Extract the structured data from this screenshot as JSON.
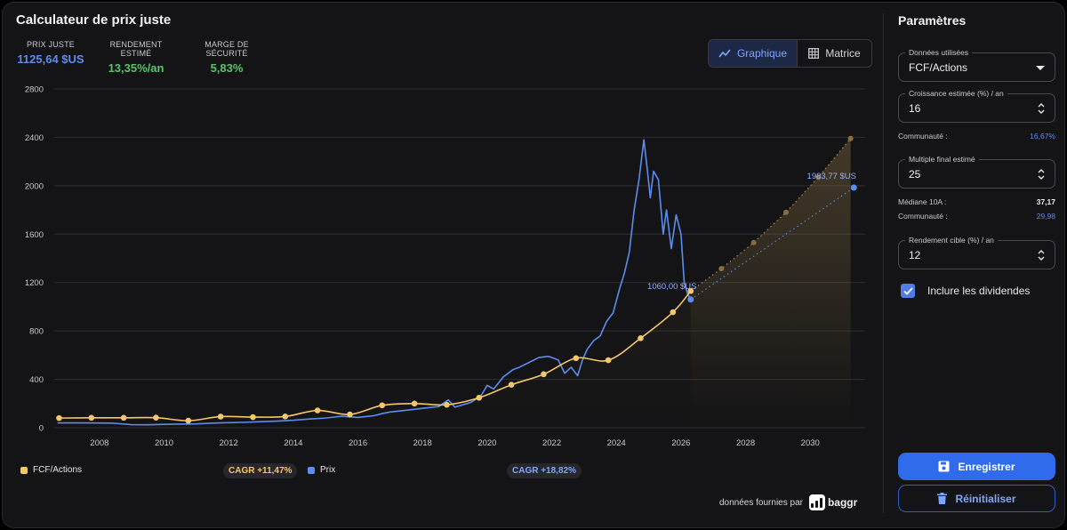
{
  "title": "Calculateur de prix juste",
  "metrics": [
    {
      "label": "PRIX JUSTE",
      "value": "1125,64 $US"
    },
    {
      "label": "RENDEMENT ESTIMÉ",
      "value": "13,35%/an"
    },
    {
      "label": "MARGE DE SÉCURITÉ",
      "value": "5,83%"
    }
  ],
  "view_toggle": {
    "graph_label": "Graphique",
    "matrix_label": "Matrice",
    "active": "Graphique"
  },
  "chart_data": {
    "type": "line",
    "xlim": [
      2006.6,
      2031.7
    ],
    "ylim": [
      0,
      2800
    ],
    "yticks": [
      0,
      400,
      800,
      1200,
      1600,
      2000,
      2400,
      2800
    ],
    "xticks": [
      "2008",
      "2010",
      "2012",
      "2014",
      "2016",
      "2018",
      "2020",
      "2022",
      "2024",
      "2026",
      "2028",
      "2030"
    ],
    "grid": "horizontal",
    "series": [
      {
        "name": "FCF/Actions",
        "color": "#f5c76a",
        "cagr": "CAGR +11,47%",
        "points": [
          [
            2006.75,
            80
          ],
          [
            2007.75,
            82
          ],
          [
            2008.75,
            82
          ],
          [
            2009.75,
            83
          ],
          [
            2010.75,
            58
          ],
          [
            2011.75,
            92
          ],
          [
            2012.75,
            88
          ],
          [
            2013.75,
            93
          ],
          [
            2014.75,
            143
          ],
          [
            2015.75,
            110
          ],
          [
            2016.75,
            185
          ],
          [
            2017.75,
            200
          ],
          [
            2018.75,
            190
          ],
          [
            2019.75,
            248
          ],
          [
            2020.75,
            355
          ],
          [
            2021.75,
            442
          ],
          [
            2022.75,
            575
          ],
          [
            2023.75,
            558
          ],
          [
            2024.75,
            740
          ],
          [
            2025.75,
            955
          ],
          [
            2026.3,
            1130
          ]
        ],
        "projection": [
          [
            2026.3,
            1130
          ],
          [
            2027.25,
            1315
          ],
          [
            2028.25,
            1530
          ],
          [
            2029.25,
            1780
          ],
          [
            2030.25,
            2070
          ],
          [
            2031.25,
            2390
          ]
        ]
      },
      {
        "name": "Prix",
        "color": "#5b8def",
        "cagr": "CAGR +18,82%",
        "points": [
          [
            2006.7,
            40
          ],
          [
            2007.5,
            40
          ],
          [
            2008.4,
            38
          ],
          [
            2009.0,
            25
          ],
          [
            2009.5,
            24
          ],
          [
            2010.0,
            28
          ],
          [
            2010.5,
            30
          ],
          [
            2011.0,
            32
          ],
          [
            2011.5,
            38
          ],
          [
            2012.0,
            42
          ],
          [
            2012.5,
            45
          ],
          [
            2013.0,
            50
          ],
          [
            2013.5,
            55
          ],
          [
            2014.0,
            62
          ],
          [
            2014.5,
            72
          ],
          [
            2015.0,
            80
          ],
          [
            2015.5,
            95
          ],
          [
            2016.0,
            85
          ],
          [
            2016.5,
            100
          ],
          [
            2016.8,
            120
          ],
          [
            2017.0,
            130
          ],
          [
            2017.5,
            145
          ],
          [
            2018.0,
            160
          ],
          [
            2018.5,
            175
          ],
          [
            2018.8,
            230
          ],
          [
            2019.0,
            170
          ],
          [
            2019.5,
            210
          ],
          [
            2019.8,
            260
          ],
          [
            2020.0,
            350
          ],
          [
            2020.2,
            320
          ],
          [
            2020.5,
            420
          ],
          [
            2020.8,
            480
          ],
          [
            2021.0,
            500
          ],
          [
            2021.3,
            540
          ],
          [
            2021.6,
            580
          ],
          [
            2021.9,
            590
          ],
          [
            2022.2,
            560
          ],
          [
            2022.4,
            450
          ],
          [
            2022.6,
            500
          ],
          [
            2022.8,
            430
          ],
          [
            2022.95,
            560
          ],
          [
            2023.1,
            650
          ],
          [
            2023.3,
            720
          ],
          [
            2023.5,
            760
          ],
          [
            2023.7,
            880
          ],
          [
            2023.9,
            950
          ],
          [
            2024.1,
            1150
          ],
          [
            2024.25,
            1280
          ],
          [
            2024.4,
            1450
          ],
          [
            2024.55,
            1800
          ],
          [
            2024.7,
            2050
          ],
          [
            2024.85,
            2380
          ],
          [
            2024.95,
            2150
          ],
          [
            2025.05,
            1900
          ],
          [
            2025.15,
            2120
          ],
          [
            2025.3,
            2050
          ],
          [
            2025.45,
            1600
          ],
          [
            2025.55,
            1800
          ],
          [
            2025.7,
            1480
          ],
          [
            2025.85,
            1760
          ],
          [
            2026.0,
            1600
          ],
          [
            2026.1,
            1200
          ],
          [
            2026.2,
            1110
          ],
          [
            2026.3,
            1060
          ]
        ],
        "projection": [
          [
            2026.3,
            1060
          ],
          [
            2031.35,
            1984
          ]
        ]
      }
    ],
    "annotations": [
      {
        "label": "1060,00 $US",
        "x": 2026.3,
        "y": 1060
      },
      {
        "label": "1983,77 $US",
        "x": 2031.35,
        "y": 1984
      }
    ]
  },
  "credit": {
    "text": "données fournies par",
    "brand": "baggr"
  },
  "params": {
    "title": "Paramètres",
    "data_used": {
      "label": "Données utilisées",
      "value": "FCF/Actions"
    },
    "growth": {
      "label": "Croissance estimée (%) / an",
      "value": "16",
      "community_label": "Communauté :",
      "community_value": "16,67%"
    },
    "multiple": {
      "label": "Multiple final estimé",
      "value": "25",
      "median_label": "Médiane 10A :",
      "median_value": "37,17",
      "community_label": "Communauté :",
      "community_value": "29,98"
    },
    "target": {
      "label": "Rendement cible (%) / an",
      "value": "12"
    },
    "dividends_label": "Inclure les dividendes",
    "dividends_checked": true,
    "save_label": "Enregistrer",
    "reset_label": "Réinitialiser"
  }
}
